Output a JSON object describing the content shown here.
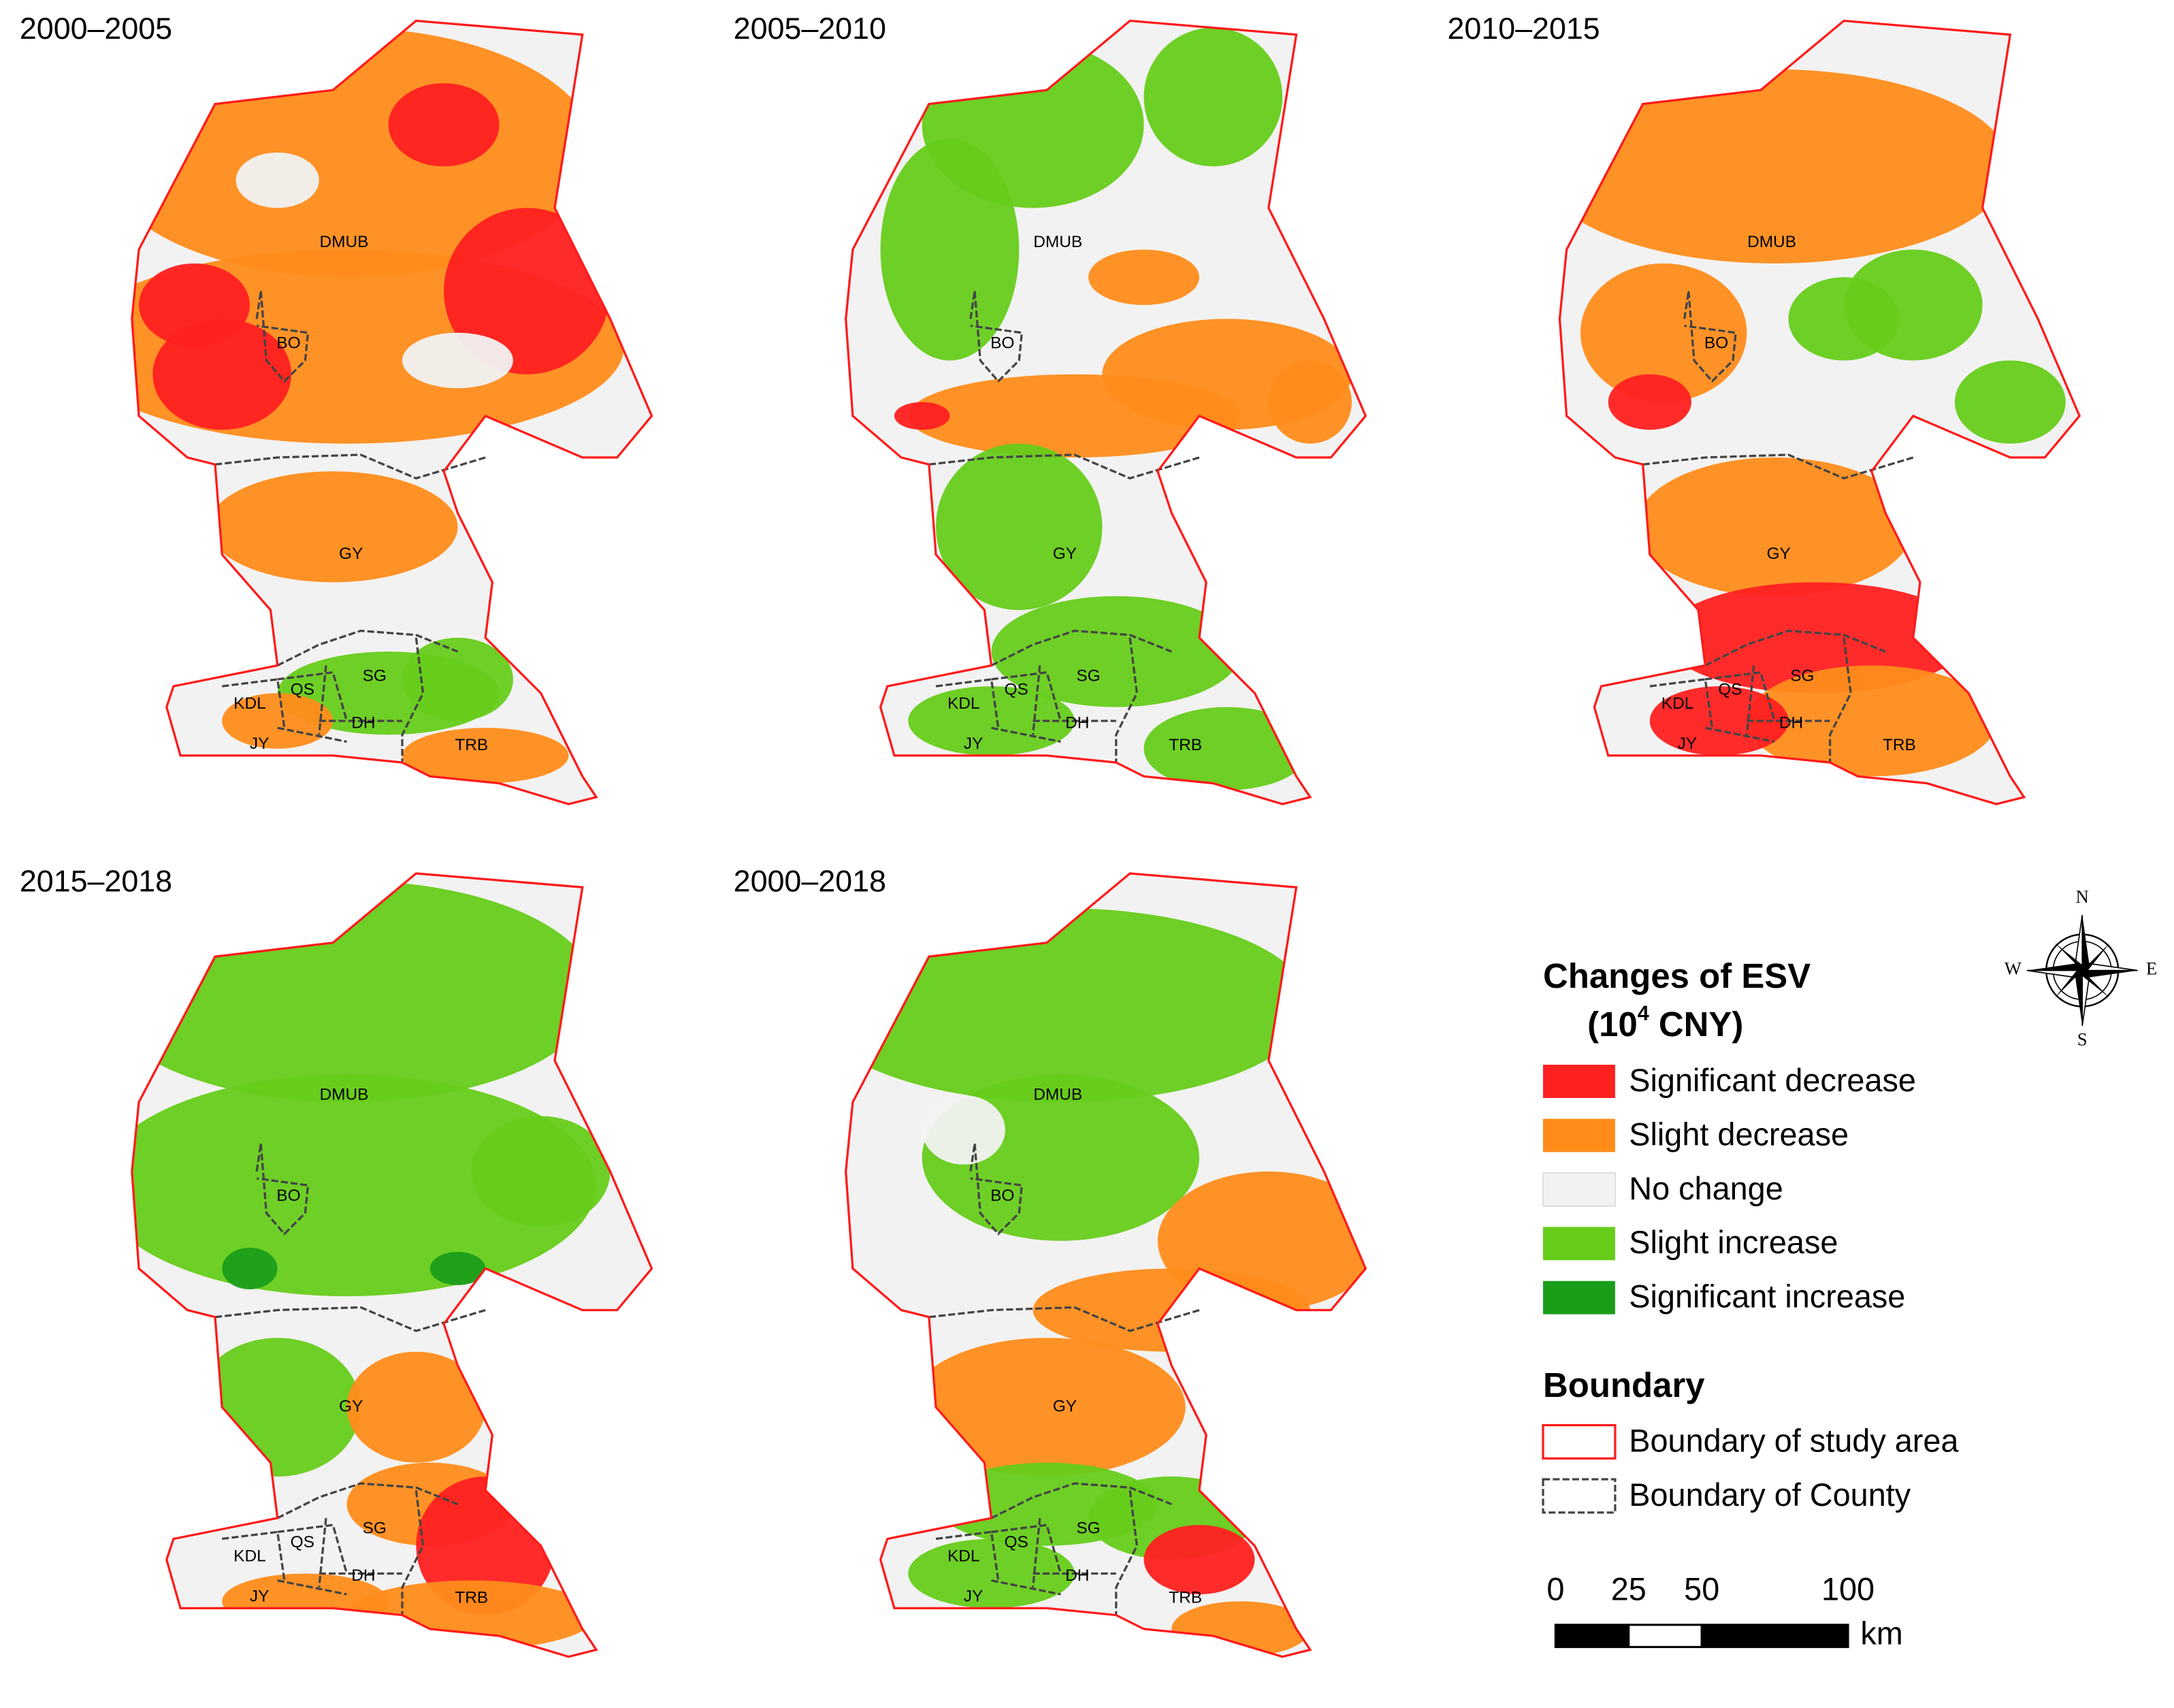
{
  "panels": [
    {
      "title": "2000–2005",
      "labels": [
        "DMUB",
        "BO",
        "GY",
        "SG",
        "QS",
        "KDL",
        "DH",
        "JY",
        "TRB"
      ]
    },
    {
      "title": "2005–2010",
      "labels": [
        "DMUB",
        "BO",
        "GY",
        "SG",
        "QS",
        "KDL",
        "DH",
        "JY",
        "TRB"
      ]
    },
    {
      "title": "2010–2015",
      "labels": [
        "DMUB",
        "BO",
        "GY",
        "SG",
        "QS",
        "KDL",
        "DH",
        "JY",
        "TRB"
      ]
    },
    {
      "title": "2015–2018",
      "labels": [
        "DMUB",
        "BO",
        "GY",
        "SG",
        "QS",
        "KDL",
        "DH",
        "JY",
        "TRB"
      ]
    },
    {
      "title": "2000–2018",
      "labels": [
        "DMUB",
        "BO",
        "GY",
        "SG",
        "QS",
        "KDL",
        "DH",
        "JY",
        "TRB"
      ]
    }
  ],
  "legend": {
    "title": "Changes of ESV",
    "unit": {
      "prefix": "(10",
      "exponent": "4",
      "suffix": " CNY)"
    },
    "items": [
      {
        "label": "Significant decrease",
        "color": "#ff2020"
      },
      {
        "label": "Slight decrease",
        "color": "#ff8c1a"
      },
      {
        "label": "No change",
        "color": "#f2f2f2"
      },
      {
        "label": "Slight increase",
        "color": "#66cc1a"
      },
      {
        "label": "Significant increase",
        "color": "#1a9e1a"
      }
    ],
    "boundary_title": "Boundary",
    "boundary_items": [
      {
        "label": "Boundary of study area",
        "color": "#ff1a1a"
      },
      {
        "label": "Boundary of County",
        "color": "#444444"
      }
    ]
  },
  "scale_bar": {
    "ticks": [
      0,
      25,
      50,
      100
    ],
    "unit": "km"
  },
  "compass": {
    "north": "N",
    "east": "E",
    "south": "S",
    "west": "W"
  }
}
